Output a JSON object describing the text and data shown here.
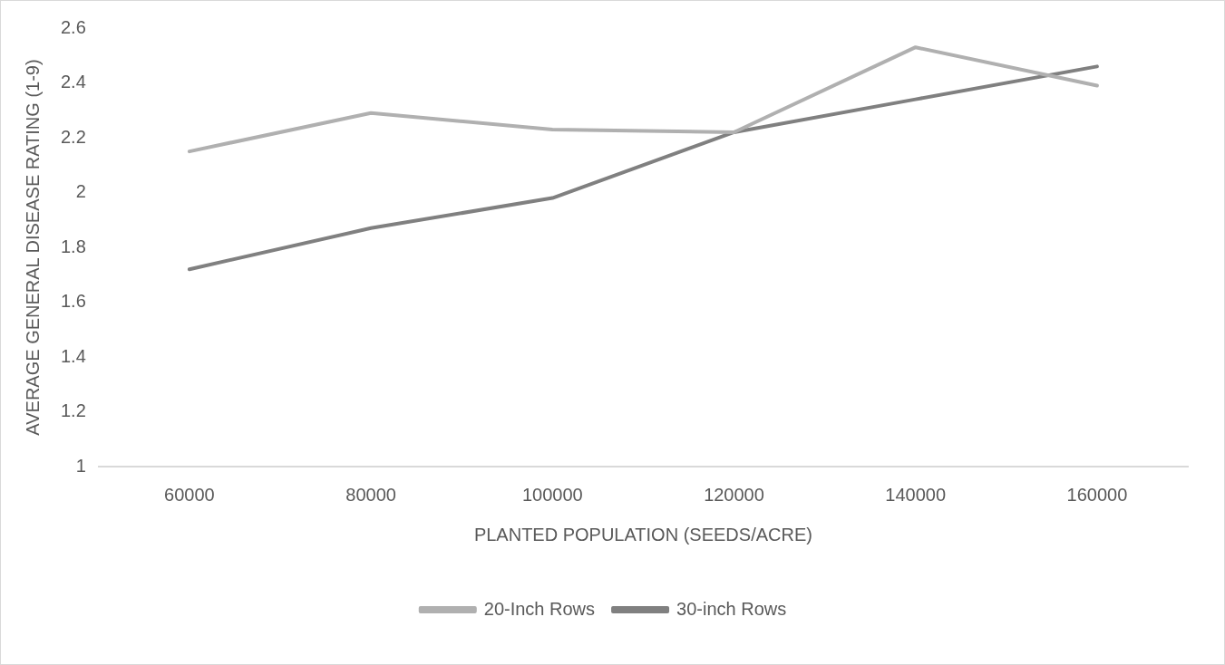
{
  "chart_data": {
    "type": "line",
    "xlabel": "PLANTED POPULATION (SEEDS/ACRE)",
    "ylabel": "AVERAGE GENERAL DISEASE RATING (1-9)",
    "categories": [
      "60000",
      "80000",
      "100000",
      "120000",
      "140000",
      "160000"
    ],
    "series": [
      {
        "name": "20-Inch Rows",
        "color": "#b0b0b0",
        "values": [
          2.15,
          2.29,
          2.23,
          2.22,
          2.53,
          2.39
        ]
      },
      {
        "name": "30-inch Rows",
        "color": "#808080",
        "values": [
          1.72,
          1.87,
          1.98,
          2.22,
          2.34,
          2.46
        ]
      }
    ],
    "ylim": [
      1,
      2.6
    ],
    "yticks": [
      1,
      1.2,
      1.4,
      1.6,
      1.8,
      2,
      2.2,
      2.4,
      2.6
    ],
    "grid": false,
    "legend": "bottom",
    "marker": "none",
    "line_style": "solid"
  }
}
